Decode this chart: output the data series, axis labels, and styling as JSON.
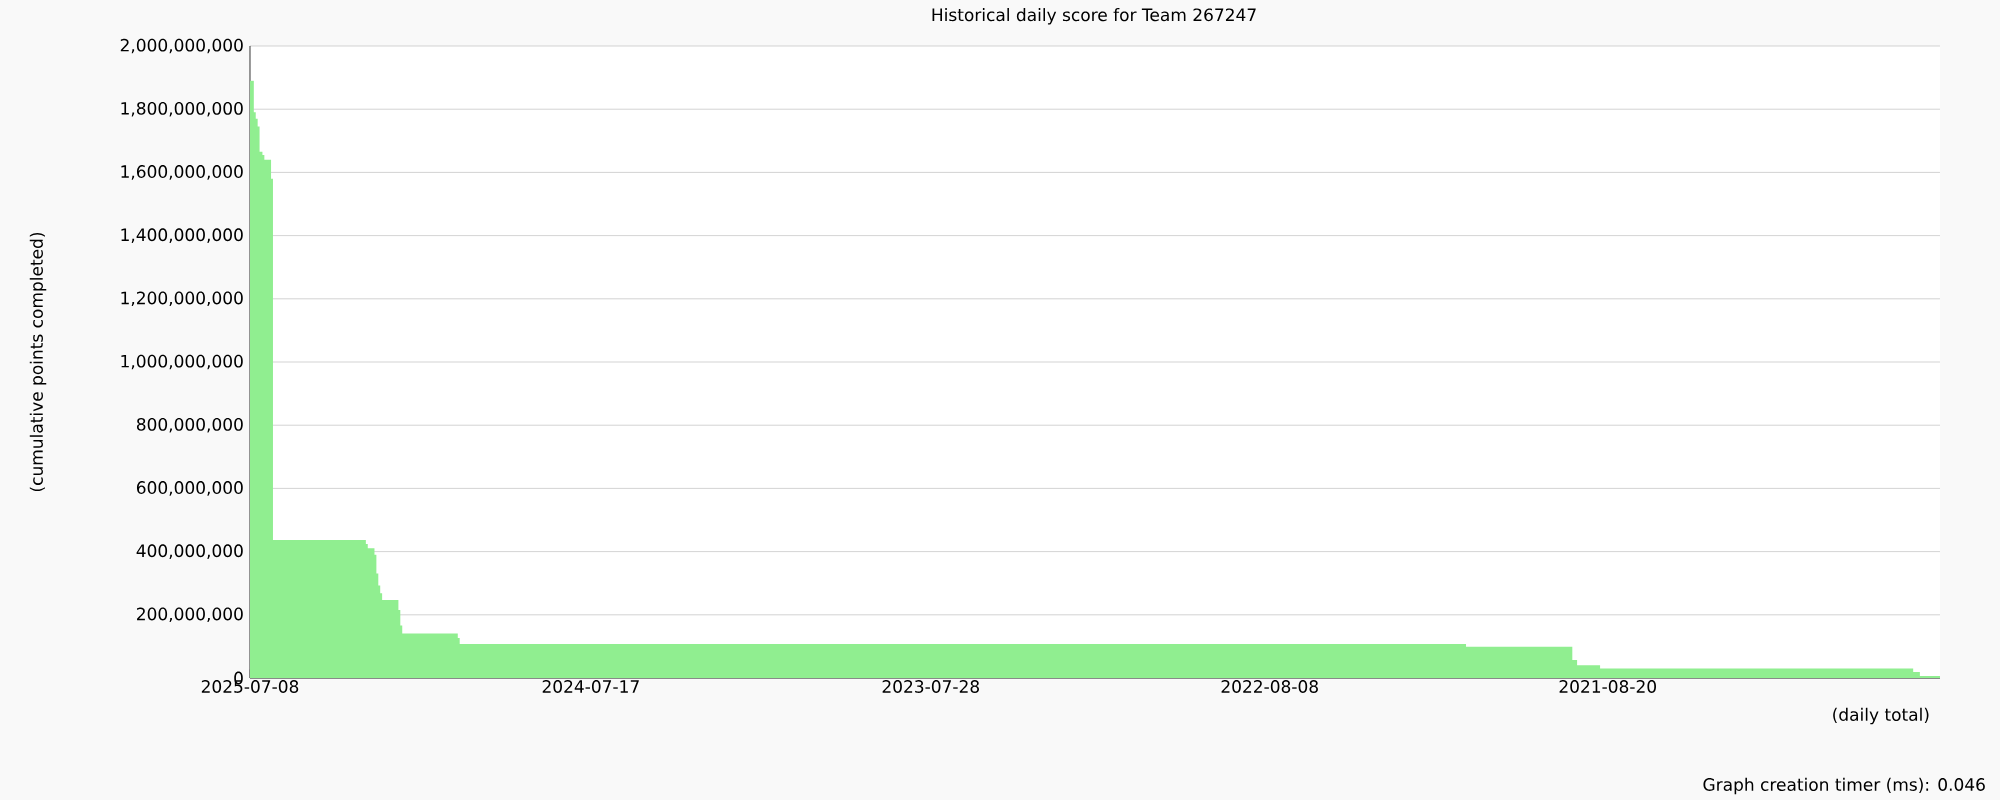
{
  "chart_data": {
    "type": "area",
    "title": "Historical daily score for Team 267247",
    "ylabel": "(cumulative points completed)",
    "annotations": [
      "(daily total)",
      "Graph creation timer (ms): 0.046"
    ],
    "x": [
      "2025-07-08",
      "2025-07-04",
      "2025-07-02",
      "2025-06-30",
      "2025-06-28",
      "2025-06-25",
      "2025-06-23",
      "2025-06-16",
      "2025-06-14",
      "2025-03-09",
      "2025-03-07",
      "2025-02-28",
      "2025-02-26",
      "2025-02-24",
      "2025-02-22",
      "2025-02-20",
      "2025-02-03",
      "2025-02-01",
      "2025-01-30",
      "2024-12-03",
      "2024-12-01",
      "2022-01-15",
      "2021-09-26",
      "2021-09-21",
      "2021-08-28",
      "2020-10-05",
      "2020-09-28",
      "2020-09-07"
    ],
    "values": [
      1890000000,
      1790000000,
      1770000000,
      1745000000,
      1665000000,
      1655000000,
      1640000000,
      1580000000,
      437000000,
      424000000,
      411000000,
      390000000,
      331000000,
      293000000,
      268000000,
      247000000,
      215000000,
      166000000,
      141000000,
      127000000,
      108000000,
      99000000,
      57000000,
      40000000,
      30000000,
      19000000,
      6000000,
      6000000
    ],
    "color": "#90ee90",
    "xlim": [
      "2025-07-08",
      "2020-09-07"
    ],
    "xticks": [
      "2025-07-08",
      {
        "value": "2025-01-11",
        "label": null
      },
      "2024-07-17",
      {
        "value": "2024-01-22",
        "label": null
      },
      "2023-07-28",
      {
        "value": "2023-02-01",
        "label": null
      },
      "2022-08-08",
      {
        "value": "2022-02-16",
        "label": null
      },
      "2021-08-20",
      {
        "value": "2021-03-06",
        "label": null
      }
    ],
    "ylim": [
      0,
      2000000000
    ],
    "yticks": [
      0,
      {
        "value": 200000000,
        "label": "200,000,000"
      },
      {
        "value": 400000000,
        "label": "400,000,000"
      },
      {
        "value": 600000000,
        "label": "600,000,000"
      },
      {
        "value": 800000000,
        "label": "800,000,000"
      },
      {
        "value": 1000000000,
        "label": "1,000,000,000"
      },
      {
        "value": 1200000000,
        "label": "1,200,000,000"
      },
      {
        "value": 1400000000,
        "label": "1,400,000,000"
      },
      {
        "value": 1600000000,
        "label": "1,600,000,000"
      },
      {
        "value": 1800000000,
        "label": "1,800,000,000"
      },
      {
        "value": 2000000000,
        "label": "2,000,000,000"
      }
    ],
    "grid": "y"
  }
}
